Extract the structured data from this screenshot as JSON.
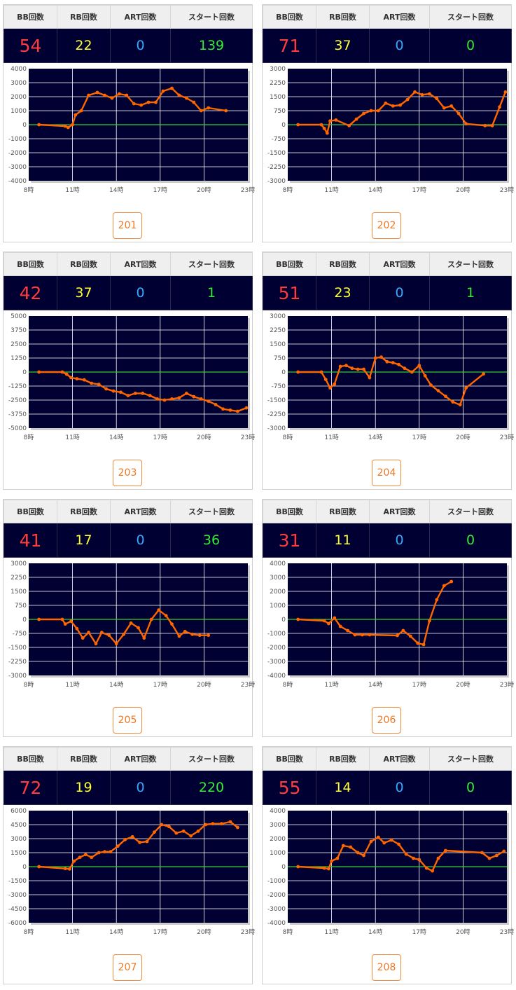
{
  "headers": {
    "bb": "BB回数",
    "rb": "RB回数",
    "art": "ART回数",
    "start": "スタート回数"
  },
  "colors": {
    "bb": "#ff3b3b",
    "rb": "#ffff33",
    "art": "#33aaff",
    "start": "#33ee33",
    "plot_bg": "#000033",
    "series": "#ff6600",
    "zero_line": "#33cc33",
    "button": "#ee7722"
  },
  "x_ticks": [
    "8時",
    "11時",
    "14時",
    "17時",
    "20時",
    "23時"
  ],
  "machines": [
    {
      "id": "201",
      "bb": "54",
      "rb": "22",
      "art": "0",
      "start": "139"
    },
    {
      "id": "202",
      "bb": "71",
      "rb": "37",
      "art": "0",
      "start": "0"
    },
    {
      "id": "203",
      "bb": "42",
      "rb": "37",
      "art": "0",
      "start": "1"
    },
    {
      "id": "204",
      "bb": "51",
      "rb": "23",
      "art": "0",
      "start": "1"
    },
    {
      "id": "205",
      "bb": "41",
      "rb": "17",
      "art": "0",
      "start": "36"
    },
    {
      "id": "206",
      "bb": "31",
      "rb": "11",
      "art": "0",
      "start": "0"
    },
    {
      "id": "207",
      "bb": "72",
      "rb": "19",
      "art": "0",
      "start": "220"
    },
    {
      "id": "208",
      "bb": "55",
      "rb": "14",
      "art": "0",
      "start": "0"
    }
  ],
  "chart_data": [
    {
      "type": "line",
      "machine": "201",
      "xlim": [
        8,
        23
      ],
      "ylim": [
        -4000,
        4000
      ],
      "y_ticks": [
        "4000",
        "3000",
        "2000",
        "1000",
        "0",
        "-1000",
        "-2000",
        "-3000",
        "-4000"
      ],
      "points": [
        [
          8.7,
          0
        ],
        [
          10.5,
          -100
        ],
        [
          10.7,
          -200
        ],
        [
          11.0,
          0
        ],
        [
          11.2,
          700
        ],
        [
          11.6,
          1000
        ],
        [
          12.1,
          2100
        ],
        [
          12.7,
          2300
        ],
        [
          13.2,
          2100
        ],
        [
          13.7,
          1900
        ],
        [
          14.2,
          2200
        ],
        [
          14.7,
          2100
        ],
        [
          15.2,
          1500
        ],
        [
          15.7,
          1400
        ],
        [
          16.2,
          1600
        ],
        [
          16.7,
          1600
        ],
        [
          17.2,
          2400
        ],
        [
          17.8,
          2600
        ],
        [
          18.3,
          2100
        ],
        [
          18.8,
          1900
        ],
        [
          19.3,
          1600
        ],
        [
          19.8,
          1000
        ],
        [
          20.3,
          1200
        ],
        [
          21.5,
          1000
        ]
      ]
    },
    {
      "type": "line",
      "machine": "202",
      "xlim": [
        8,
        23
      ],
      "ylim": [
        -3000,
        3000
      ],
      "y_ticks": [
        "3000",
        "2250",
        "1500",
        "750",
        "0",
        "-750",
        "-1500",
        "-2250",
        "-3000"
      ],
      "points": [
        [
          8.7,
          0
        ],
        [
          10.3,
          0
        ],
        [
          10.5,
          -200
        ],
        [
          10.7,
          -450
        ],
        [
          10.9,
          200
        ],
        [
          11.3,
          250
        ],
        [
          12.2,
          -50
        ],
        [
          12.7,
          300
        ],
        [
          13.2,
          600
        ],
        [
          13.7,
          750
        ],
        [
          14.2,
          750
        ],
        [
          14.7,
          1150
        ],
        [
          15.2,
          1000
        ],
        [
          15.7,
          1050
        ],
        [
          16.2,
          1350
        ],
        [
          16.7,
          1750
        ],
        [
          17.2,
          1600
        ],
        [
          17.7,
          1650
        ],
        [
          18.2,
          1400
        ],
        [
          18.7,
          900
        ],
        [
          19.2,
          1000
        ],
        [
          19.7,
          600
        ],
        [
          20.2,
          50
        ],
        [
          21.5,
          -50
        ],
        [
          22.0,
          -50
        ],
        [
          22.5,
          950
        ],
        [
          22.9,
          1750
        ]
      ]
    },
    {
      "type": "line",
      "machine": "203",
      "xlim": [
        8,
        23
      ],
      "ylim": [
        -5000,
        5000
      ],
      "y_ticks": [
        "5000",
        "3750",
        "2500",
        "1250",
        "0",
        "-1250",
        "-2500",
        "-3750",
        "-5000"
      ],
      "points": [
        [
          8.7,
          0
        ],
        [
          10.3,
          0
        ],
        [
          10.6,
          -200
        ],
        [
          10.9,
          -500
        ],
        [
          11.3,
          -600
        ],
        [
          11.8,
          -700
        ],
        [
          12.3,
          -1000
        ],
        [
          12.8,
          -1100
        ],
        [
          13.3,
          -1500
        ],
        [
          13.8,
          -1700
        ],
        [
          14.3,
          -1800
        ],
        [
          14.8,
          -2100
        ],
        [
          15.3,
          -1900
        ],
        [
          15.8,
          -1900
        ],
        [
          16.3,
          -2100
        ],
        [
          16.8,
          -2400
        ],
        [
          17.3,
          -2500
        ],
        [
          17.8,
          -2400
        ],
        [
          18.3,
          -2300
        ],
        [
          18.8,
          -1900
        ],
        [
          19.3,
          -2200
        ],
        [
          19.8,
          -2400
        ],
        [
          20.3,
          -2600
        ],
        [
          20.8,
          -2900
        ],
        [
          21.3,
          -3300
        ],
        [
          21.8,
          -3400
        ],
        [
          22.3,
          -3500
        ],
        [
          22.9,
          -3200
        ]
      ]
    },
    {
      "type": "line",
      "machine": "204",
      "xlim": [
        8,
        23
      ],
      "ylim": [
        -3000,
        3000
      ],
      "y_ticks": [
        "3000",
        "2250",
        "1500",
        "750",
        "0",
        "-750",
        "-1500",
        "-2250",
        "-3000"
      ],
      "points": [
        [
          8.7,
          0
        ],
        [
          10.3,
          0
        ],
        [
          10.6,
          -400
        ],
        [
          10.9,
          -850
        ],
        [
          11.2,
          -650
        ],
        [
          11.6,
          300
        ],
        [
          12.0,
          350
        ],
        [
          12.4,
          200
        ],
        [
          12.8,
          150
        ],
        [
          13.2,
          150
        ],
        [
          13.6,
          -300
        ],
        [
          14.0,
          750
        ],
        [
          14.4,
          800
        ],
        [
          14.8,
          550
        ],
        [
          15.2,
          500
        ],
        [
          15.6,
          400
        ],
        [
          16.0,
          200
        ],
        [
          16.5,
          0
        ],
        [
          17.0,
          350
        ],
        [
          17.4,
          -200
        ],
        [
          17.8,
          -700
        ],
        [
          18.3,
          -1000
        ],
        [
          18.8,
          -1300
        ],
        [
          19.3,
          -1600
        ],
        [
          19.8,
          -1750
        ],
        [
          20.2,
          -850
        ],
        [
          21.4,
          -100
        ]
      ]
    },
    {
      "type": "line",
      "machine": "205",
      "xlim": [
        8,
        23
      ],
      "ylim": [
        -3000,
        3000
      ],
      "y_ticks": [
        "3000",
        "2250",
        "1500",
        "750",
        "0",
        "-750",
        "-1500",
        "-2250",
        "-3000"
      ],
      "points": [
        [
          8.7,
          0
        ],
        [
          10.3,
          0
        ],
        [
          10.5,
          -250
        ],
        [
          10.9,
          -100
        ],
        [
          11.3,
          -500
        ],
        [
          11.7,
          -1000
        ],
        [
          12.1,
          -700
        ],
        [
          12.6,
          -1300
        ],
        [
          13.0,
          -700
        ],
        [
          13.5,
          -850
        ],
        [
          14.0,
          -1300
        ],
        [
          14.5,
          -800
        ],
        [
          15.0,
          -200
        ],
        [
          15.5,
          -450
        ],
        [
          15.9,
          -1000
        ],
        [
          16.4,
          0
        ],
        [
          16.9,
          500
        ],
        [
          17.4,
          200
        ],
        [
          17.8,
          -250
        ],
        [
          18.3,
          -900
        ],
        [
          18.7,
          -650
        ],
        [
          19.2,
          -800
        ],
        [
          19.7,
          -850
        ],
        [
          20.3,
          -850
        ]
      ]
    },
    {
      "type": "line",
      "machine": "206",
      "xlim": [
        8,
        23
      ],
      "ylim": [
        -4000,
        4000
      ],
      "y_ticks": [
        "4000",
        "3000",
        "2000",
        "1000",
        "0",
        "-1000",
        "-2000",
        "-3000",
        "-4000"
      ],
      "points": [
        [
          8.7,
          0
        ],
        [
          10.5,
          -100
        ],
        [
          10.8,
          -300
        ],
        [
          11.2,
          100
        ],
        [
          11.6,
          -500
        ],
        [
          12.1,
          -800
        ],
        [
          12.6,
          -1100
        ],
        [
          13.1,
          -1100
        ],
        [
          13.6,
          -1100
        ],
        [
          15.5,
          -1150
        ],
        [
          15.9,
          -800
        ],
        [
          16.4,
          -1200
        ],
        [
          16.9,
          -1700
        ],
        [
          17.3,
          -1800
        ],
        [
          17.7,
          -100
        ],
        [
          18.2,
          1400
        ],
        [
          18.7,
          2400
        ],
        [
          19.2,
          2700
        ]
      ]
    },
    {
      "type": "line",
      "machine": "207",
      "xlim": [
        8,
        23
      ],
      "ylim": [
        -6000,
        6000
      ],
      "y_ticks": [
        "6000",
        "4500",
        "3000",
        "1500",
        "0",
        "-1500",
        "-3000",
        "-4500",
        "-6000"
      ],
      "points": [
        [
          8.7,
          0
        ],
        [
          10.5,
          -200
        ],
        [
          10.8,
          -250
        ],
        [
          11.1,
          600
        ],
        [
          11.5,
          1000
        ],
        [
          11.9,
          1300
        ],
        [
          12.3,
          1000
        ],
        [
          12.8,
          1500
        ],
        [
          13.2,
          1600
        ],
        [
          13.6,
          1600
        ],
        [
          14.1,
          2200
        ],
        [
          14.6,
          2900
        ],
        [
          15.1,
          3200
        ],
        [
          15.6,
          2600
        ],
        [
          16.1,
          2700
        ],
        [
          16.6,
          3700
        ],
        [
          17.1,
          4500
        ],
        [
          17.6,
          4300
        ],
        [
          18.1,
          3600
        ],
        [
          18.6,
          3800
        ],
        [
          19.1,
          3300
        ],
        [
          19.6,
          3800
        ],
        [
          20.1,
          4500
        ],
        [
          20.6,
          4600
        ],
        [
          21.2,
          4600
        ],
        [
          21.8,
          4800
        ],
        [
          22.3,
          4200
        ]
      ]
    },
    {
      "type": "line",
      "machine": "208",
      "xlim": [
        8,
        23
      ],
      "ylim": [
        -4000,
        4000
      ],
      "y_ticks": [
        "4000",
        "3000",
        "2000",
        "1000",
        "0",
        "-1000",
        "-2000",
        "-3000",
        "-4000"
      ],
      "points": [
        [
          8.7,
          0
        ],
        [
          10.5,
          -100
        ],
        [
          10.8,
          -150
        ],
        [
          11.0,
          400
        ],
        [
          11.4,
          600
        ],
        [
          11.8,
          1500
        ],
        [
          12.3,
          1400
        ],
        [
          12.8,
          1000
        ],
        [
          13.2,
          800
        ],
        [
          13.7,
          1800
        ],
        [
          14.2,
          2100
        ],
        [
          14.6,
          1700
        ],
        [
          15.1,
          1900
        ],
        [
          15.6,
          1600
        ],
        [
          16.1,
          900
        ],
        [
          16.6,
          600
        ],
        [
          17.0,
          500
        ],
        [
          17.5,
          -100
        ],
        [
          17.9,
          -300
        ],
        [
          18.3,
          600
        ],
        [
          18.8,
          1150
        ],
        [
          21.3,
          1000
        ],
        [
          21.8,
          600
        ],
        [
          22.3,
          800
        ],
        [
          22.8,
          1100
        ]
      ]
    }
  ]
}
